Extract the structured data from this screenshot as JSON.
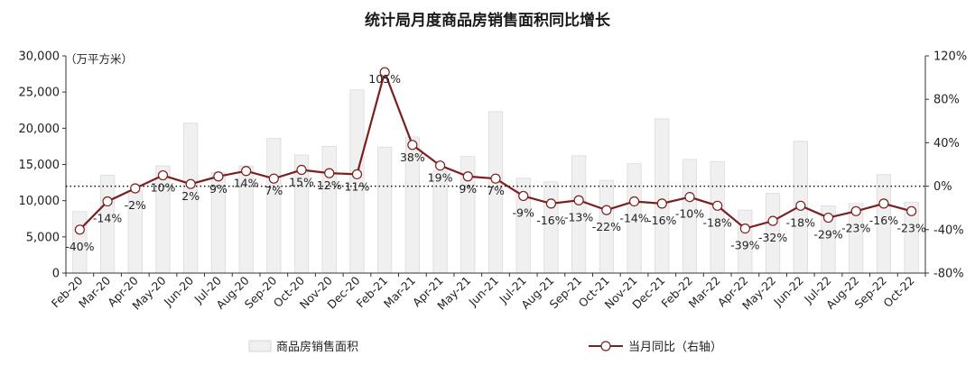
{
  "chart_data": {
    "type": "bar+line",
    "title": "统计局月度商品房销售面积同比增长",
    "unit_label": "（万平方米）",
    "categories": [
      "Feb-20",
      "Mar-20",
      "Apr-20",
      "May-20",
      "Jun-20",
      "Jul-20",
      "Aug-20",
      "Sep-20",
      "Oct-20",
      "Nov-20",
      "Dec-20",
      "Feb-21",
      "Mar-21",
      "Apr-21",
      "May-21",
      "Jun-21",
      "Jul-21",
      "Aug-21",
      "Sep-21",
      "Oct-21",
      "Nov-21",
      "Dec-21",
      "Feb-22",
      "Mar-22",
      "Apr-22",
      "May-22",
      "Jun-22",
      "Jul-22",
      "Aug-22",
      "Sep-22",
      "Oct-22"
    ],
    "series": [
      {
        "name": "商品房销售面积",
        "type": "bar",
        "axis": "left",
        "color": "#f0f0f0",
        "values": [
          8500,
          13500,
          11300,
          14800,
          20700,
          13900,
          14800,
          18600,
          16300,
          17500,
          25300,
          17400,
          18800,
          14100,
          16100,
          22300,
          13100,
          12600,
          16200,
          12800,
          15100,
          21300,
          15700,
          15400,
          8700,
          11000,
          18200,
          9300,
          9600,
          13600,
          9800
        ]
      },
      {
        "name": "当月同比（右轴）",
        "type": "line",
        "axis": "right",
        "color": "#7b1f1f",
        "values": [
          -40,
          -14,
          -2,
          10,
          2,
          9,
          14,
          7,
          15,
          12,
          11,
          105,
          38,
          19,
          9,
          7,
          -9,
          -16,
          -13,
          -22,
          -14,
          -16,
          -10,
          -18,
          -39,
          -32,
          -18,
          -29,
          -23,
          -16,
          -23
        ],
        "labels": [
          "-40%",
          "-14%",
          "-2%",
          "10%",
          "2%",
          "9%",
          "14%",
          "7%",
          "15%",
          "12%",
          "11%",
          "105%",
          "38%",
          "19%",
          "9%",
          "7%",
          "-9%",
          "-16%",
          "-13%",
          "-22%",
          "-14%",
          "-16%",
          "-10%",
          "-18%",
          "-39%",
          "-32%",
          "-18%",
          "-29%",
          "-23%",
          "-16%",
          "-23%"
        ]
      }
    ],
    "y_left": {
      "min": 0,
      "max": 30000,
      "ticks": [
        "0",
        "5,000",
        "10,000",
        "15,000",
        "20,000",
        "25,000",
        "30,000"
      ]
    },
    "y_right": {
      "min": -80,
      "max": 120,
      "ticks": [
        "-80%",
        "-40%",
        "0%",
        "40%",
        "80%",
        "120%"
      ]
    },
    "reference_line": {
      "value": 0,
      "axis": "right",
      "style": "dotted"
    },
    "legend": {
      "placement": "bottom"
    }
  }
}
